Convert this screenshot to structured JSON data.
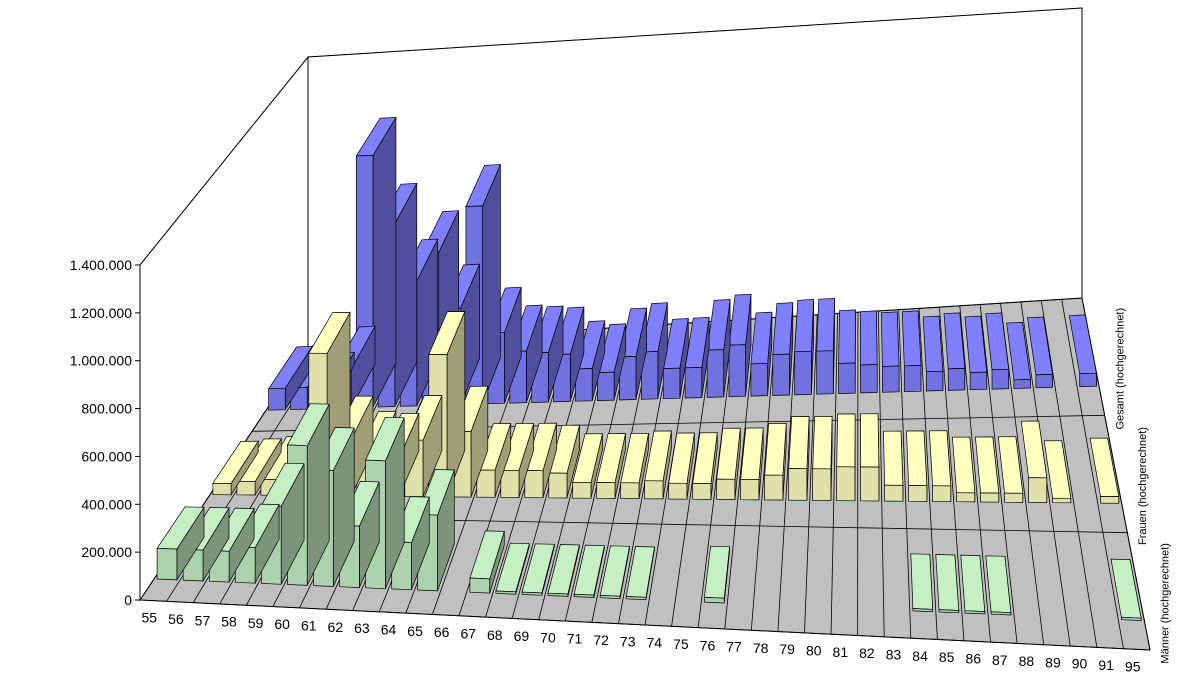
{
  "chart_data": {
    "type": "bar",
    "subtype": "3d-column",
    "categories": [
      "55",
      "56",
      "57",
      "58",
      "59",
      "60",
      "61",
      "62",
      "63",
      "64",
      "65",
      "66",
      "67",
      "68",
      "69",
      "70",
      "71",
      "72",
      "73",
      "74",
      "75",
      "76",
      "77",
      "78",
      "79",
      "80",
      "81",
      "82",
      "83",
      "84",
      "85",
      "86",
      "87",
      "88",
      "89",
      "90",
      "91",
      "95"
    ],
    "y_ticks": [
      "0",
      "200.000",
      "400.000",
      "600.000",
      "800.000",
      "1.000.000",
      "1.200.000",
      "1.400.000"
    ],
    "ylim": [
      0,
      1400000
    ],
    "grid": true,
    "series": [
      {
        "name": "Männer (hochgerechnet)",
        "color": "#c4f0c4",
        "values": [
          130000,
          130000,
          130000,
          150000,
          330000,
          590000,
          490000,
          260000,
          540000,
          200000,
          320000,
          0,
          60000,
          10000,
          10000,
          10000,
          10000,
          10000,
          10000,
          0,
          0,
          20000,
          0,
          0,
          0,
          0,
          0,
          0,
          0,
          10000,
          10000,
          10000,
          10000,
          0,
          0,
          0,
          0,
          10000
        ]
      },
      {
        "name": "Frauen (hochgerechnet)",
        "color": "#ffffc0",
        "values": [
          50000,
          60000,
          70000,
          100000,
          630000,
          250000,
          180000,
          170000,
          250000,
          630000,
          290000,
          120000,
          120000,
          120000,
          110000,
          70000,
          70000,
          70000,
          80000,
          70000,
          70000,
          90000,
          90000,
          110000,
          140000,
          140000,
          150000,
          150000,
          70000,
          70000,
          70000,
          40000,
          40000,
          40000,
          110000,
          20000,
          0,
          30000
        ]
      },
      {
        "name": "Gesamt (hochgerechnet)",
        "color": "#8080ff",
        "values": [
          100000,
          100000,
          60000,
          180000,
          1170000,
          850000,
          580000,
          710000,
          450000,
          920000,
          330000,
          240000,
          230000,
          220000,
          150000,
          130000,
          200000,
          220000,
          140000,
          140000,
          220000,
          240000,
          150000,
          190000,
          200000,
          200000,
          140000,
          130000,
          120000,
          120000,
          90000,
          100000,
          80000,
          90000,
          40000,
          60000,
          0,
          60000
        ]
      }
    ]
  }
}
